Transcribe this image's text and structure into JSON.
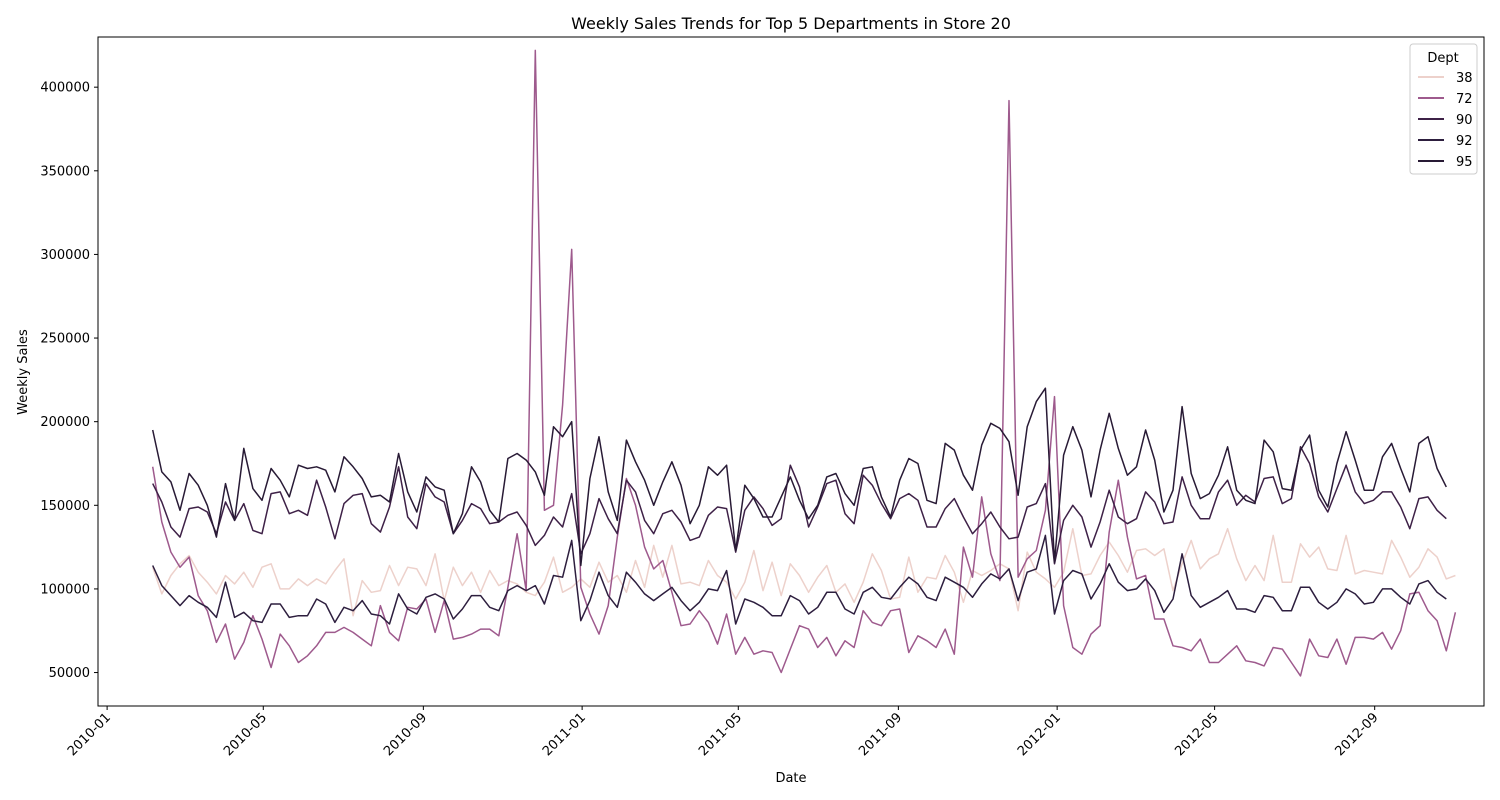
{
  "chart_data": {
    "type": "line",
    "title": "Weekly Sales Trends for Top 5 Departments in Store 20",
    "xlabel": "Date",
    "ylabel": "Weekly Sales",
    "x_range": [
      "2009-12-25",
      "2012-11-24"
    ],
    "ylim": [
      30000,
      430000
    ],
    "x_ticks": [
      "2010-01",
      "2010-05",
      "2010-09",
      "2011-01",
      "2011-05",
      "2011-09",
      "2012-01",
      "2012-05",
      "2012-09"
    ],
    "y_ticks": [
      50000,
      100000,
      150000,
      200000,
      250000,
      300000,
      350000,
      400000
    ],
    "grid": false,
    "legend": {
      "title": "Dept",
      "placement": "top-right"
    },
    "series": [
      {
        "name": "38",
        "color": "#edd1cb",
        "values": [
          113000,
          97000,
          108000,
          115000,
          120000,
          110000,
          104000,
          97000,
          108000,
          103000,
          110000,
          101000,
          113000,
          115000,
          100000,
          100000,
          106000,
          102000,
          106000,
          103000,
          111000,
          118000,
          84000,
          105000,
          98000,
          99000,
          114000,
          102000,
          113000,
          112000,
          102000,
          121000,
          93000,
          113000,
          102000,
          110000,
          98000,
          111000,
          102000,
          105000,
          103000,
          98000,
          96000,
          104000,
          119000,
          98000,
          101000,
          106000,
          101000,
          116000,
          104000,
          108000,
          98000,
          117000,
          101000,
          126000,
          107000,
          126000,
          103000,
          104000,
          102000,
          117000,
          108000,
          104000,
          94000,
          104000,
          123000,
          99000,
          116000,
          96000,
          115000,
          108000,
          98000,
          107000,
          114000,
          98000,
          103000,
          92000,
          104000,
          121000,
          111000,
          94000,
          95000,
          119000,
          98000,
          107000,
          106000,
          120000,
          110000,
          92000,
          111000,
          108000,
          111000,
          115000,
          112000,
          87000,
          122000,
          110000,
          106000,
          101000,
          110000,
          136000,
          108000,
          109000,
          120000,
          128000,
          120000,
          110000,
          123000,
          124000,
          120000,
          124000,
          99000,
          115000,
          129000,
          112000,
          118000,
          121000,
          136000,
          118000,
          105000,
          114000,
          105000,
          132000,
          104000,
          104000,
          127000,
          119000,
          125000,
          112000,
          111000,
          132000,
          109000,
          111000,
          110000,
          109000,
          129000,
          119000,
          107000,
          113000,
          124000,
          119000,
          106000,
          108000
        ]
      },
      {
        "name": "72",
        "color": "#9e5a8d",
        "values": [
          173000,
          140000,
          122000,
          113000,
          119000,
          96000,
          87000,
          68000,
          79000,
          58000,
          68000,
          84000,
          70000,
          53000,
          73000,
          66000,
          56000,
          60000,
          66000,
          74000,
          74000,
          77000,
          74000,
          70000,
          66000,
          90000,
          74000,
          69000,
          89000,
          88000,
          94000,
          74000,
          93000,
          70000,
          71000,
          73000,
          76000,
          76000,
          72000,
          101000,
          133000,
          99000,
          422000,
          147000,
          150000,
          210000,
          303000,
          101000,
          85000,
          73000,
          90000,
          131000,
          166000,
          150000,
          125000,
          112000,
          117000,
          98000,
          78000,
          79000,
          87000,
          80000,
          67000,
          85000,
          61000,
          71000,
          61000,
          63000,
          62000,
          50000,
          64000,
          78000,
          76000,
          65000,
          71000,
          60000,
          69000,
          65000,
          87000,
          80000,
          78000,
          87000,
          88000,
          62000,
          72000,
          69000,
          65000,
          76000,
          61000,
          125000,
          107000,
          155000,
          121000,
          105000,
          392000,
          107000,
          118000,
          123000,
          147000,
          215000,
          90000,
          65000,
          61000,
          73000,
          78000,
          134000,
          165000,
          131000,
          106000,
          108000,
          82000,
          82000,
          66000,
          65000,
          63000,
          70000,
          56000,
          56000,
          61000,
          66000,
          57000,
          56000,
          54000,
          65000,
          64000,
          56000,
          48000,
          70000,
          60000,
          59000,
          70000,
          55000,
          71000,
          71000,
          70000,
          74000,
          64000,
          75000,
          97000,
          98000,
          87000,
          81000,
          63000,
          86000
        ]
      },
      {
        "name": "90",
        "color": "#3e2147",
        "values": [
          163000,
          152000,
          137000,
          131000,
          148000,
          149000,
          146000,
          133000,
          152000,
          141000,
          151000,
          135000,
          133000,
          157000,
          158000,
          145000,
          147000,
          144000,
          165000,
          149000,
          130000,
          151000,
          156000,
          157000,
          139000,
          134000,
          149000,
          173000,
          143000,
          136000,
          163000,
          155000,
          152000,
          133000,
          141000,
          151000,
          148000,
          139000,
          140000,
          144000,
          146000,
          138000,
          126000,
          132000,
          143000,
          137000,
          157000,
          121000,
          133000,
          154000,
          142000,
          133000,
          165000,
          158000,
          141000,
          133000,
          145000,
          147000,
          140000,
          129000,
          131000,
          144000,
          149000,
          148000,
          122000,
          147000,
          155000,
          148000,
          138000,
          142000,
          174000,
          161000,
          137000,
          149000,
          163000,
          165000,
          145000,
          139000,
          168000,
          162000,
          151000,
          142000,
          154000,
          157000,
          153000,
          137000,
          137000,
          148000,
          154000,
          143000,
          133000,
          139000,
          146000,
          137000,
          130000,
          131000,
          149000,
          151000,
          163000,
          115000,
          141000,
          150000,
          143000,
          125000,
          140000,
          159000,
          143000,
          139000,
          142000,
          158000,
          152000,
          139000,
          140000,
          167000,
          150000,
          142000,
          142000,
          158000,
          165000,
          150000,
          156000,
          152000,
          166000,
          167000,
          151000,
          154000,
          185000,
          175000,
          155000,
          146000,
          160000,
          174000,
          158000,
          151000,
          153000,
          158000,
          158000,
          149000,
          136000,
          154000,
          155000,
          147000,
          142000
        ]
      },
      {
        "name": "92",
        "color": "#2d1e3e",
        "values": [
          114000,
          102000,
          96000,
          90000,
          96000,
          92000,
          89000,
          83000,
          104000,
          83000,
          86000,
          81000,
          80000,
          91000,
          91000,
          83000,
          84000,
          84000,
          94000,
          91000,
          80000,
          89000,
          87000,
          93000,
          85000,
          84000,
          79000,
          97000,
          88000,
          85000,
          95000,
          97000,
          94000,
          82000,
          88000,
          96000,
          96000,
          89000,
          87000,
          99000,
          102000,
          99000,
          102000,
          91000,
          108000,
          107000,
          129000,
          81000,
          93000,
          110000,
          96000,
          89000,
          110000,
          104000,
          97000,
          93000,
          97000,
          101000,
          93000,
          87000,
          92000,
          100000,
          99000,
          111000,
          79000,
          94000,
          92000,
          89000,
          84000,
          84000,
          96000,
          93000,
          85000,
          89000,
          98000,
          98000,
          88000,
          85000,
          98000,
          101000,
          95000,
          94000,
          101000,
          107000,
          103000,
          95000,
          93000,
          107000,
          104000,
          101000,
          95000,
          103000,
          109000,
          106000,
          112000,
          93000,
          110000,
          112000,
          132000,
          85000,
          105000,
          111000,
          109000,
          94000,
          103000,
          115000,
          104000,
          99000,
          100000,
          106000,
          99000,
          86000,
          94000,
          121000,
          96000,
          89000,
          92000,
          95000,
          99000,
          88000,
          88000,
          86000,
          96000,
          95000,
          87000,
          87000,
          101000,
          101000,
          92000,
          88000,
          92000,
          100000,
          97000,
          91000,
          92000,
          100000,
          100000,
          95000,
          91000,
          103000,
          105000,
          98000,
          94000
        ]
      },
      {
        "name": "95",
        "color": "#281a35",
        "values": [
          195000,
          170000,
          164000,
          147000,
          169000,
          162000,
          150000,
          131000,
          163000,
          141000,
          184000,
          160000,
          153000,
          172000,
          165000,
          155000,
          174000,
          172000,
          173000,
          171000,
          158000,
          179000,
          173000,
          166000,
          155000,
          156000,
          152000,
          181000,
          158000,
          146000,
          167000,
          161000,
          159000,
          133000,
          145000,
          173000,
          164000,
          147000,
          140000,
          178000,
          181000,
          177000,
          170000,
          156000,
          197000,
          191000,
          200000,
          114000,
          166000,
          191000,
          158000,
          141000,
          189000,
          176000,
          165000,
          150000,
          164000,
          176000,
          162000,
          139000,
          150000,
          173000,
          168000,
          174000,
          123000,
          162000,
          154000,
          143000,
          143000,
          155000,
          167000,
          153000,
          142000,
          150000,
          167000,
          169000,
          157000,
          150000,
          172000,
          173000,
          155000,
          143000,
          165000,
          178000,
          175000,
          153000,
          151000,
          187000,
          183000,
          168000,
          159000,
          186000,
          199000,
          196000,
          188000,
          156000,
          197000,
          212000,
          220000,
          116000,
          180000,
          197000,
          183000,
          155000,
          183000,
          205000,
          184000,
          168000,
          173000,
          195000,
          177000,
          146000,
          159000,
          209000,
          169000,
          154000,
          157000,
          168000,
          185000,
          159000,
          153000,
          151000,
          189000,
          182000,
          160000,
          159000,
          183000,
          192000,
          159000,
          149000,
          175000,
          194000,
          177000,
          159000,
          159000,
          179000,
          187000,
          172000,
          158000,
          187000,
          191000,
          172000,
          161000
        ]
      }
    ]
  }
}
